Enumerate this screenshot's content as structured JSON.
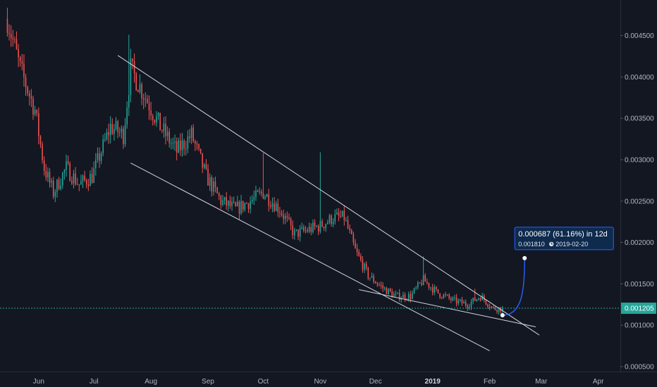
{
  "colors": {
    "background": "#131722",
    "grid": "#1e222d",
    "axis_text": "#b2b5be",
    "up_candle": "#26a69a",
    "down_candle": "#ef5350",
    "trendline": "#d1d4dc",
    "current_price": "#26a69a",
    "projection": "#2962ff",
    "projection_box": "#0e2a4d"
  },
  "chart_data": {
    "type": "candlestick",
    "title": "",
    "xlabel": "",
    "ylabel": "",
    "ylim": [
      0.00044,
      0.00493
    ],
    "y_ticks": [
      0.0005,
      0.001,
      0.0015,
      0.002,
      0.0025,
      0.003,
      0.0035,
      0.004,
      0.0045
    ],
    "y_tick_labels": [
      "0.000500",
      "0.001000",
      "0.001500",
      "0.002000",
      "0.002500",
      "0.003000",
      "0.003500",
      "0.004000",
      "0.004500"
    ],
    "x_tick_labels": [
      {
        "label": "Jun",
        "date": "2018-06-01"
      },
      {
        "label": "Jul",
        "date": "2018-07-01"
      },
      {
        "label": "Aug",
        "date": "2018-08-01"
      },
      {
        "label": "Sep",
        "date": "2018-09-01"
      },
      {
        "label": "Oct",
        "date": "2018-10-01"
      },
      {
        "label": "Nov",
        "date": "2018-11-01"
      },
      {
        "label": "Dec",
        "date": "2018-12-01"
      },
      {
        "label": "2019",
        "date": "2019-01-01",
        "bold": true
      },
      {
        "label": "Feb",
        "date": "2019-02-01"
      },
      {
        "label": "Mar",
        "date": "2019-03-01"
      },
      {
        "label": "Apr",
        "date": "2019-04-01"
      }
    ],
    "x_range": [
      "2018-05-11",
      "2019-04-13"
    ],
    "grid": false,
    "current_price": 0.001205,
    "current_price_label": "0.001205",
    "close_path": [
      {
        "date": "2018-05-15",
        "price": 0.0047
      },
      {
        "date": "2018-05-22",
        "price": 0.0041
      },
      {
        "date": "2018-05-30",
        "price": 0.0036
      },
      {
        "date": "2018-06-04",
        "price": 0.0029
      },
      {
        "date": "2018-06-09",
        "price": 0.0026
      },
      {
        "date": "2018-06-16",
        "price": 0.0029
      },
      {
        "date": "2018-06-23",
        "price": 0.0027
      },
      {
        "date": "2018-06-30",
        "price": 0.0028
      },
      {
        "date": "2018-07-05",
        "price": 0.0031
      },
      {
        "date": "2018-07-10",
        "price": 0.0034
      },
      {
        "date": "2018-07-17",
        "price": 0.0033
      },
      {
        "date": "2018-07-21",
        "price": 0.0041
      },
      {
        "date": "2018-07-28",
        "price": 0.0038
      },
      {
        "date": "2018-08-06",
        "price": 0.0034
      },
      {
        "date": "2018-08-15",
        "price": 0.0031
      },
      {
        "date": "2018-08-23",
        "price": 0.0033
      },
      {
        "date": "2018-08-31",
        "price": 0.0028
      },
      {
        "date": "2018-09-08",
        "price": 0.0025
      },
      {
        "date": "2018-09-16",
        "price": 0.0024
      },
      {
        "date": "2018-09-24",
        "price": 0.0025
      },
      {
        "date": "2018-10-01",
        "price": 0.0026
      },
      {
        "date": "2018-10-10",
        "price": 0.0024
      },
      {
        "date": "2018-10-18",
        "price": 0.0021
      },
      {
        "date": "2018-10-25",
        "price": 0.00215
      },
      {
        "date": "2018-11-01",
        "price": 0.0022
      },
      {
        "date": "2018-11-08",
        "price": 0.0023
      },
      {
        "date": "2018-11-14",
        "price": 0.0023
      },
      {
        "date": "2018-11-20",
        "price": 0.0019
      },
      {
        "date": "2018-11-27",
        "price": 0.0016
      },
      {
        "date": "2018-12-05",
        "price": 0.00145
      },
      {
        "date": "2018-12-12",
        "price": 0.00135
      },
      {
        "date": "2018-12-20",
        "price": 0.00135
      },
      {
        "date": "2018-12-27",
        "price": 0.00155
      },
      {
        "date": "2019-01-03",
        "price": 0.0014
      },
      {
        "date": "2019-01-12",
        "price": 0.0013
      },
      {
        "date": "2019-01-20",
        "price": 0.00125
      },
      {
        "date": "2019-01-27",
        "price": 0.00135
      },
      {
        "date": "2019-02-03",
        "price": 0.0012
      },
      {
        "date": "2019-02-08",
        "price": 0.001205
      }
    ],
    "spikes": [
      {
        "date": "2018-07-20",
        "high": 0.00451
      },
      {
        "date": "2018-10-01",
        "high": 0.00308
      },
      {
        "date": "2018-11-01",
        "high": 0.00309
      },
      {
        "date": "2018-12-27",
        "high": 0.00183
      },
      {
        "date": "2019-01-24",
        "high": 0.00144
      }
    ],
    "trendlines": [
      {
        "name": "channel-upper",
        "from": {
          "date": "2018-07-14",
          "price": 0.00426
        },
        "to": {
          "date": "2019-02-28",
          "price": 0.00088
        }
      },
      {
        "name": "channel-lower",
        "from": {
          "date": "2018-07-21",
          "price": 0.00296
        },
        "to": {
          "date": "2019-02-01",
          "price": 0.00069
        }
      },
      {
        "name": "support-line",
        "from": {
          "date": "2018-11-22",
          "price": 0.00143
        },
        "to": {
          "date": "2019-02-26",
          "price": 0.00098
        }
      }
    ],
    "projection": {
      "from": {
        "date": "2019-02-08",
        "price": 0.00112
      },
      "to": {
        "date": "2019-02-20",
        "price": 0.00181
      },
      "change_label": "0.000687 (61.16%) in 12d",
      "price_label": "0.001810",
      "date_label": "2019-02-20"
    }
  }
}
